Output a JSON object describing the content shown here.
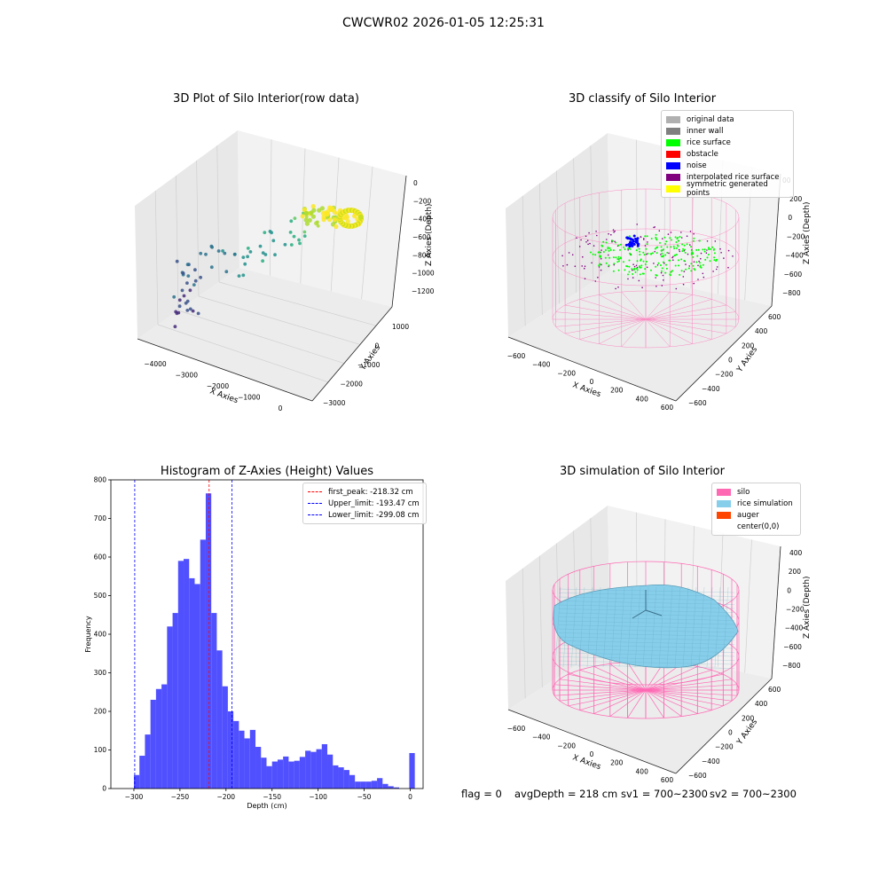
{
  "figure": {
    "suptitle": "CWCWR02 2026-01-05 12:25:31"
  },
  "panels": {
    "raw": {
      "title": "3D Plot of Silo Interior(row data)",
      "xlabel": "X Axies",
      "ylabel": "Y Axies",
      "zlabel": "Z Axies (Depth)",
      "xticks": [
        "−4000",
        "−3000",
        "−2000",
        "−1000",
        "0"
      ],
      "yticks": [
        "1000",
        "0",
        "−1000",
        "−2000",
        "−3000"
      ],
      "zticks": [
        "0",
        "−200",
        "−400",
        "−600",
        "−800",
        "−1000",
        "−1200"
      ]
    },
    "classify": {
      "title": "3D classify of Silo Interior",
      "xlabel": "X Axies",
      "ylabel": "Y Axies",
      "zlabel": "Z Axies (Depth)",
      "xticks": [
        "−600",
        "−400",
        "−200",
        "0",
        "200",
        "400",
        "600"
      ],
      "yticks": [
        "600",
        "400",
        "200",
        "0",
        "−200",
        "−400",
        "−600"
      ],
      "zticks": [
        "200",
        "0",
        "−200",
        "−400",
        "−600",
        "−800"
      ],
      "zticks_top": "00",
      "legend": [
        {
          "label": "original data",
          "color": "#b0b0b0"
        },
        {
          "label": "inner wall",
          "color": "#808080"
        },
        {
          "label": "rice surface",
          "color": "#00ff00"
        },
        {
          "label": "obstacle",
          "color": "#ff0000"
        },
        {
          "label": "noise",
          "color": "#0000ff"
        },
        {
          "label": "interpolated rice surface",
          "color": "#800080"
        },
        {
          "label": "symmetric generated points",
          "color": "#ffff00"
        }
      ]
    },
    "simulation": {
      "title": "3D simulation of Silo Interior",
      "xlabel": "X Axies",
      "ylabel": "Y Axies",
      "zlabel": "Z Axies (Depth)",
      "xticks": [
        "−600",
        "−400",
        "−200",
        "0",
        "200",
        "400",
        "600"
      ],
      "yticks": [
        "600",
        "400",
        "200",
        "0",
        "−200",
        "−400",
        "−600"
      ],
      "zticks": [
        "400",
        "200",
        "0",
        "−200",
        "−400",
        "−600",
        "−800"
      ],
      "legend": [
        {
          "label": "silo",
          "color": "#ff69b4"
        },
        {
          "label": "rice simulation",
          "color": "#87ceeb"
        },
        {
          "label": "auger",
          "color": "#ff4500"
        },
        {
          "label": "center(0,0)",
          "color": ""
        }
      ]
    }
  },
  "chart_data": [
    {
      "type": "bar",
      "title": "Histogram of Z-Axies (Height) Values",
      "xlabel": "Depth (cm)",
      "ylabel": "Frequency",
      "xlim": [
        -325,
        14
      ],
      "ylim": [
        0,
        800
      ],
      "xticks": [
        -300,
        -250,
        -200,
        -150,
        -100,
        -50,
        0
      ],
      "xtick_labels": [
        "−300",
        "−250",
        "−200",
        "−150",
        "−100",
        "−50",
        "0"
      ],
      "yticks": [
        0,
        100,
        200,
        300,
        400,
        500,
        600,
        700,
        800
      ],
      "bar_color": "#4d4dff",
      "bin_width": 6,
      "bin_starts": [
        -300,
        -294,
        -288,
        -282,
        -276,
        -270,
        -264,
        -258,
        -252,
        -246,
        -240,
        -234,
        -228,
        -222,
        -216,
        -210,
        -204,
        -198,
        -192,
        -186,
        -180,
        -174,
        -168,
        -162,
        -156,
        -150,
        -144,
        -138,
        -132,
        -126,
        -120,
        -114,
        -108,
        -102,
        -96,
        -90,
        -84,
        -78,
        -72,
        -66,
        -60,
        -54,
        -48,
        -42,
        -36,
        -30,
        -24,
        -18,
        -12,
        -6,
        -1
      ],
      "values": [
        35,
        85,
        140,
        230,
        258,
        270,
        420,
        455,
        590,
        595,
        545,
        530,
        645,
        765,
        455,
        358,
        265,
        200,
        175,
        150,
        130,
        152,
        108,
        80,
        58,
        70,
        75,
        83,
        70,
        72,
        82,
        98,
        95,
        102,
        115,
        88,
        60,
        55,
        48,
        35,
        18,
        18,
        18,
        20,
        27,
        12,
        6,
        3,
        0,
        0,
        92
      ],
      "vlines": [
        {
          "label": "first_peak: -218.32 cm",
          "x": -218.32,
          "color": "#ff0000"
        },
        {
          "label": "Upper_limit: -193.47 cm",
          "x": -193.47,
          "color": "#0000ff"
        },
        {
          "label": "Lower_limit: -299.08 cm",
          "x": -299.08,
          "color": "#0000ff"
        }
      ],
      "legend_position": "top-right"
    }
  ],
  "footer": {
    "flag": "flag = 0",
    "avg_depth": "avgDepth = 218 cm",
    "sv1": "sv1 = 700~2300",
    "sv2": "sv2 = 700~2300"
  }
}
